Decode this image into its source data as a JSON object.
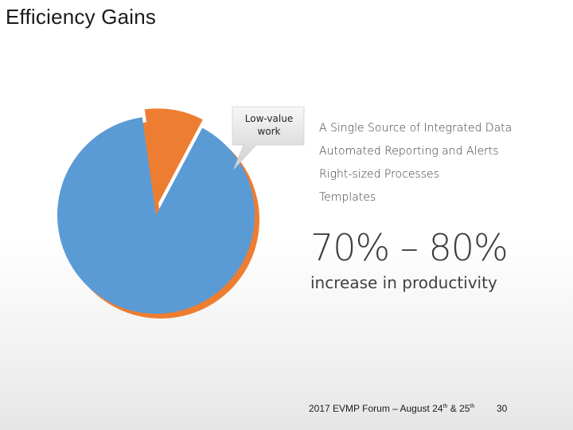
{
  "slide": {
    "title": "Efficiency Gains",
    "callout": {
      "line1": "Low-value",
      "line2": "work"
    },
    "bullets": [
      "A Single Source of Integrated Data",
      "Automated Reporting and Alerts",
      "Right-sized Processes",
      "Templates"
    ],
    "stat": {
      "value": "70% – 80%",
      "caption": "increase in productivity"
    },
    "footer": {
      "prefix": "2017 EVMP Forum – August 24",
      "sup1": "th",
      "middle": " & 25",
      "sup2": "th",
      "page_number": "30"
    }
  },
  "pie": {
    "slices": [
      {
        "label": "",
        "value": 90,
        "color": "#5b9bd5"
      },
      {
        "label": "Low-value work",
        "value": 10,
        "color": "#ed7d31"
      }
    ]
  }
}
